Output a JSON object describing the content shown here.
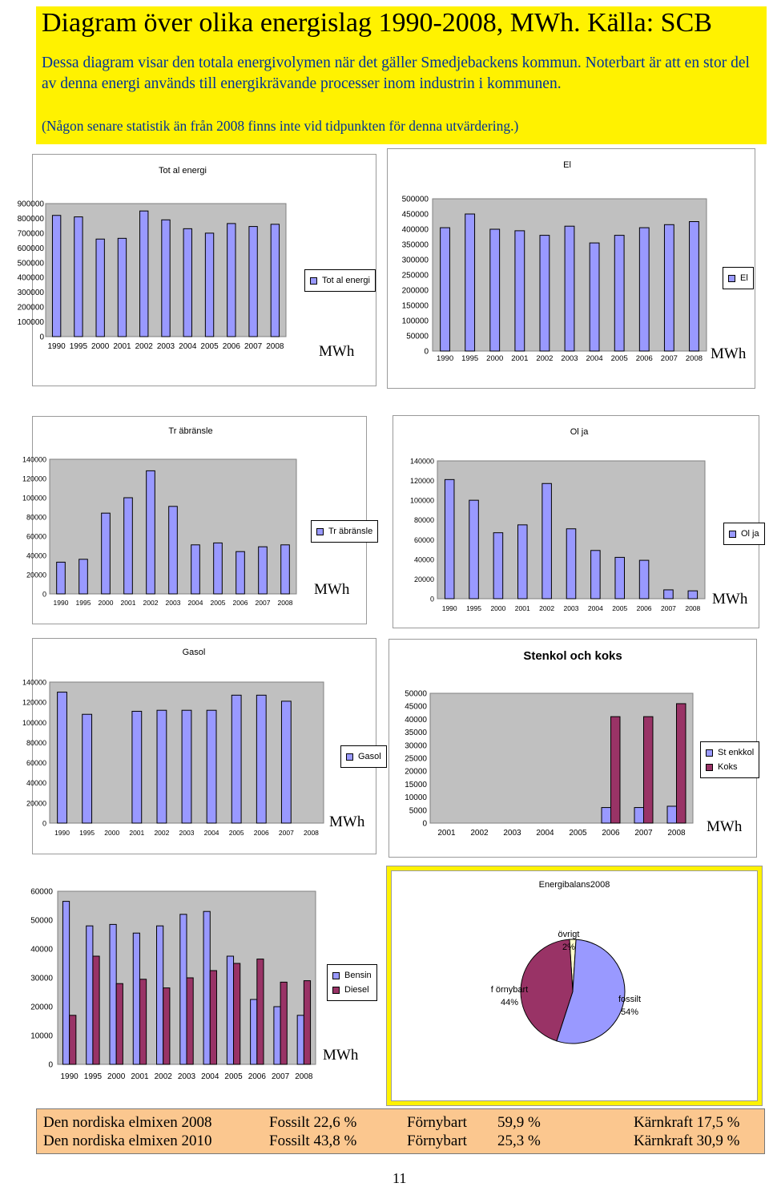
{
  "header": {
    "title": "Diagram över olika energislag 1990-2008, MWh. Källa: SCB",
    "description": "Dessa diagram visar den totala energivolymen när det gäller Smedjebackens kommun. Noterbart är att en stor del av denna energi används till energikrävande processer inom industrin i kommunen.",
    "note": "(Någon senare statistik än från 2008 finns inte vid tidpunkten för denna utvärdering.)"
  },
  "unit_label": "MWh",
  "colors": {
    "series_blue": "#9999ff",
    "series_maroon": "#993366",
    "plot_bg": "#c0c0c0",
    "header_bg": "#fff200",
    "footer_bg": "#fbc78f",
    "text_blue": "#003399"
  },
  "chart_data": [
    {
      "id": "total",
      "type": "bar",
      "title": "Tot al energi",
      "categories": [
        "1990",
        "1995",
        "2000",
        "2001",
        "2002",
        "2003",
        "2004",
        "2005",
        "2006",
        "2007",
        "2008"
      ],
      "series": [
        {
          "name": "Tot al energi",
          "values": [
            820000,
            810000,
            660000,
            665000,
            850000,
            790000,
            730000,
            700000,
            765000,
            745000,
            760000
          ]
        }
      ],
      "ylim": [
        0,
        900000
      ],
      "yticks": [
        "900000",
        "800000",
        "700000",
        "600000",
        "500000",
        "400000",
        "300000",
        "200000",
        "100000",
        "0"
      ],
      "legend": "right"
    },
    {
      "id": "el",
      "type": "bar",
      "title": "El",
      "categories": [
        "1990",
        "1995",
        "2000",
        "2001",
        "2002",
        "2003",
        "2004",
        "2005",
        "2006",
        "2007",
        "2008"
      ],
      "series": [
        {
          "name": "El",
          "values": [
            405000,
            450000,
            400000,
            395000,
            380000,
            410000,
            355000,
            380000,
            405000,
            415000,
            425000
          ]
        }
      ],
      "ylim": [
        0,
        500000
      ],
      "yticks": [
        "500000",
        "450000",
        "400000",
        "350000",
        "300000",
        "250000",
        "200000",
        "150000",
        "100000",
        "50000",
        "0"
      ],
      "legend": "right"
    },
    {
      "id": "tra",
      "type": "bar",
      "title": "Tr äbränsle",
      "categories": [
        "1990",
        "1995",
        "2000",
        "2001",
        "2002",
        "2003",
        "2004",
        "2005",
        "2006",
        "2007",
        "2008"
      ],
      "series": [
        {
          "name": "Tr äbränsle",
          "values": [
            33000,
            36000,
            84000,
            100000,
            128000,
            91000,
            51000,
            53000,
            44000,
            49000,
            51000
          ]
        }
      ],
      "ylim": [
        0,
        140000
      ],
      "yticks": [
        "140000",
        "120000",
        "100000",
        "80000",
        "60000",
        "40000",
        "20000",
        "0"
      ],
      "legend": "right"
    },
    {
      "id": "olja",
      "type": "bar",
      "title": "Ol ja",
      "categories": [
        "1990",
        "1995",
        "2000",
        "2001",
        "2002",
        "2003",
        "2004",
        "2005",
        "2006",
        "2007",
        "2008"
      ],
      "series": [
        {
          "name": "Ol ja",
          "values": [
            121000,
            100000,
            67000,
            75000,
            117000,
            71000,
            49000,
            42000,
            39000,
            9000,
            8000
          ]
        }
      ],
      "ylim": [
        0,
        140000
      ],
      "yticks": [
        "140000",
        "120000",
        "100000",
        "80000",
        "60000",
        "40000",
        "20000",
        "0"
      ],
      "legend": "right"
    },
    {
      "id": "gasol",
      "type": "bar",
      "title": "Gasol",
      "categories": [
        "1990",
        "1995",
        "2000",
        "2001",
        "2002",
        "2003",
        "2004",
        "2005",
        "2006",
        "2007",
        "2008"
      ],
      "series": [
        {
          "name": "Gasol",
          "values": [
            130000,
            108000,
            0,
            111000,
            112000,
            112000,
            112000,
            127000,
            127000,
            121000,
            0
          ]
        }
      ],
      "ylim": [
        0,
        140000
      ],
      "yticks": [
        "140000",
        "120000",
        "100000",
        "80000",
        "60000",
        "40000",
        "20000",
        "0"
      ],
      "legend": "right"
    },
    {
      "id": "stenkol",
      "type": "bar",
      "title": "Stenkol och koks",
      "categories": [
        "2001",
        "2002",
        "2003",
        "2004",
        "2005",
        "2006",
        "2007",
        "2008"
      ],
      "series": [
        {
          "name": "St enkkol",
          "values": [
            0,
            0,
            0,
            0,
            0,
            6000,
            6000,
            6500
          ]
        },
        {
          "name": "Koks",
          "values": [
            0,
            0,
            0,
            0,
            0,
            41000,
            41000,
            46000
          ]
        }
      ],
      "ylim": [
        0,
        50000
      ],
      "yticks": [
        "50000",
        "45000",
        "40000",
        "35000",
        "30000",
        "25000",
        "20000",
        "15000",
        "10000",
        "5000",
        "0"
      ],
      "legend": "right"
    },
    {
      "id": "bensin",
      "type": "bar",
      "title": "",
      "categories": [
        "1990",
        "1995",
        "2000",
        "2001",
        "2002",
        "2003",
        "2004",
        "2005",
        "2006",
        "2007",
        "2008"
      ],
      "series": [
        {
          "name": "Bensin",
          "values": [
            56500,
            48000,
            48500,
            45500,
            48000,
            52000,
            53000,
            37500,
            22500,
            20000,
            17000
          ]
        },
        {
          "name": "Diesel",
          "values": [
            17000,
            37500,
            28000,
            29500,
            26500,
            30000,
            32500,
            35000,
            36500,
            28500,
            29000
          ]
        }
      ],
      "ylim": [
        0,
        60000
      ],
      "yticks": [
        "60000",
        "50000",
        "40000",
        "30000",
        "20000",
        "10000",
        "0"
      ],
      "legend": "right"
    },
    {
      "id": "energibalans",
      "type": "pie",
      "title": "Energibalans2008",
      "slices": [
        {
          "label": "övrigt",
          "pct": "2%",
          "value": 2
        },
        {
          "label": "fossilt",
          "pct": "54%",
          "value": 54
        },
        {
          "label": "f örnybart",
          "pct": "44%",
          "value": 44
        }
      ]
    }
  ],
  "footer": {
    "rows": [
      {
        "label": "Den nordiska elmixen 2008",
        "fossilt": "Fossilt 22,6 %",
        "fornybart_label": "Förnybart",
        "fornybart_value": "59,9 %",
        "karnkraft": "Kärnkraft 17,5 %"
      },
      {
        "label": "Den nordiska elmixen 2010",
        "fossilt": "Fossilt 43,8 %",
        "fornybart_label": "Förnybart",
        "fornybart_value": "25,3 %",
        "karnkraft": "Kärnkraft 30,9 %"
      }
    ],
    "page_number": "11"
  }
}
